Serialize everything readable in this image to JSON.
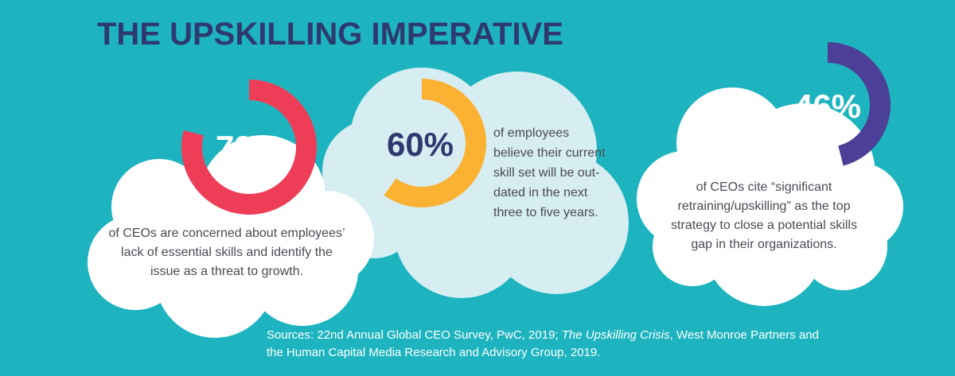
{
  "title": "THE UPSKILLING IMPERATIVE",
  "stats": [
    {
      "value": 79,
      "value_label": "79%",
      "color": "#ee3d57",
      "text": [
        "of CEOs are concerned about employees’",
        "lack of essential skills and identify the",
        "issue as a threat to growth."
      ]
    },
    {
      "value": 60,
      "value_label": "60%",
      "color": "#fbb132",
      "text": [
        "of employees",
        "believe their current",
        "skill set will be out-",
        "dated in the next",
        "three to five years."
      ]
    },
    {
      "value": 46,
      "value_label": "46%",
      "color": "#4c3f98",
      "text": [
        "of CEOs cite “significant",
        "retraining/upskilling” as the top",
        "strategy to close a potential skills",
        "gap in their organizations."
      ]
    }
  ],
  "sources": {
    "line1": [
      "Sources: 22nd Annual Global CEO Survey, PwC, 2019; ",
      "The Upskilling Crisis",
      ", West Monroe Partners and"
    ],
    "line2": "the Human Capital Media Research and Advisory Group, 2019."
  }
}
